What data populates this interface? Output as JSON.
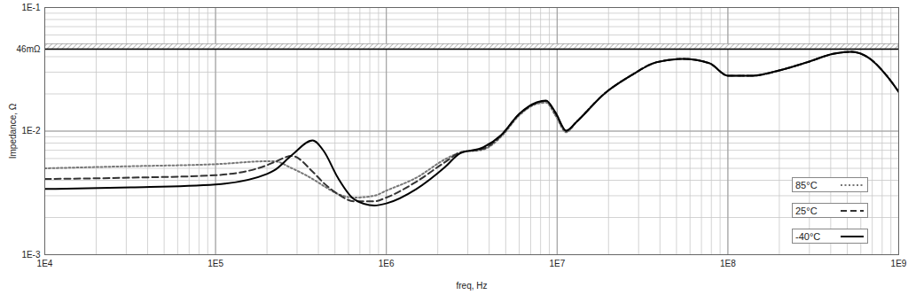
{
  "chart_data": {
    "type": "line",
    "x_label": "freq, Hz",
    "y_label": "Impedance, Ω",
    "log": true,
    "grid": true,
    "legend": "bottom-right",
    "xlim": [
      10000,
      1000000000
    ],
    "ylim": [
      0.001,
      0.1
    ],
    "xticks": [
      {
        "value": 10000,
        "label": "1E4"
      },
      {
        "value": 100000,
        "label": "1E5"
      },
      {
        "value": 1000000,
        "label": "1E6"
      },
      {
        "value": 10000000,
        "label": "1E7"
      },
      {
        "value": 100000000,
        "label": "1E8"
      },
      {
        "value": 1000000000,
        "label": "1E9"
      }
    ],
    "yticks": [
      {
        "value": 0.001,
        "label": "1E-3"
      },
      {
        "value": 0.01,
        "label": "1E-2"
      },
      {
        "value": 0.1,
        "label": "1E-1"
      }
    ],
    "annotations": [
      {
        "y": 0.046,
        "text": "46mΩ"
      }
    ],
    "x": [
      10000,
      32000,
      100000,
      200000,
      220000,
      280000,
      370000,
      430000,
      520000,
      650000,
      850000,
      1000000,
      1500000,
      2200000,
      2700000,
      3700000,
      4700000,
      6000000,
      7600000,
      8600000,
      9800000,
      11300000,
      13000000,
      19000000,
      27000000,
      38000000,
      55000000,
      78000000,
      100000000,
      140000000,
      200000000,
      290000000,
      420000000,
      530000000,
      670000000,
      850000000,
      1000000000
    ],
    "series": [
      {
        "name": "85°C",
        "color": "#777777",
        "line_style": "dotted",
        "values": [
          0.005,
          0.0052,
          0.0054,
          0.0057,
          0.0057,
          0.005,
          0.0041,
          0.0036,
          0.0031,
          0.0029,
          0.003,
          0.0033,
          0.0042,
          0.0059,
          0.0067,
          0.0071,
          0.009,
          0.0134,
          0.0166,
          0.017,
          0.0133,
          0.0098,
          0.0119,
          0.0202,
          0.0281,
          0.036,
          0.0384,
          0.0354,
          0.0281,
          0.0281,
          0.031,
          0.036,
          0.0424,
          0.0438,
          0.039,
          0.0281,
          0.0208
        ]
      },
      {
        "name": "25°C",
        "color": "#333333",
        "line_style": "dashed",
        "values": [
          0.0041,
          0.0042,
          0.0044,
          0.0053,
          0.0056,
          0.0063,
          0.0047,
          0.0038,
          0.0031,
          0.0027,
          0.0027,
          0.0029,
          0.0039,
          0.0056,
          0.0067,
          0.0072,
          0.0092,
          0.0137,
          0.0169,
          0.0175,
          0.0138,
          0.01,
          0.0119,
          0.0202,
          0.0281,
          0.036,
          0.0384,
          0.0354,
          0.0281,
          0.0281,
          0.031,
          0.036,
          0.0424,
          0.0438,
          0.039,
          0.0281,
          0.0208
        ]
      },
      {
        "name": "-40°C",
        "color": "#000000",
        "line_style": "solid",
        "values": [
          0.0034,
          0.0035,
          0.0037,
          0.0045,
          0.0048,
          0.0064,
          0.0084,
          0.0069,
          0.0042,
          0.0028,
          0.0025,
          0.0026,
          0.0034,
          0.0051,
          0.0066,
          0.0074,
          0.0093,
          0.0138,
          0.0171,
          0.0177,
          0.0141,
          0.0101,
          0.0119,
          0.0202,
          0.0281,
          0.036,
          0.0384,
          0.0354,
          0.0281,
          0.0281,
          0.031,
          0.036,
          0.0424,
          0.0438,
          0.039,
          0.0281,
          0.0208
        ]
      }
    ]
  }
}
